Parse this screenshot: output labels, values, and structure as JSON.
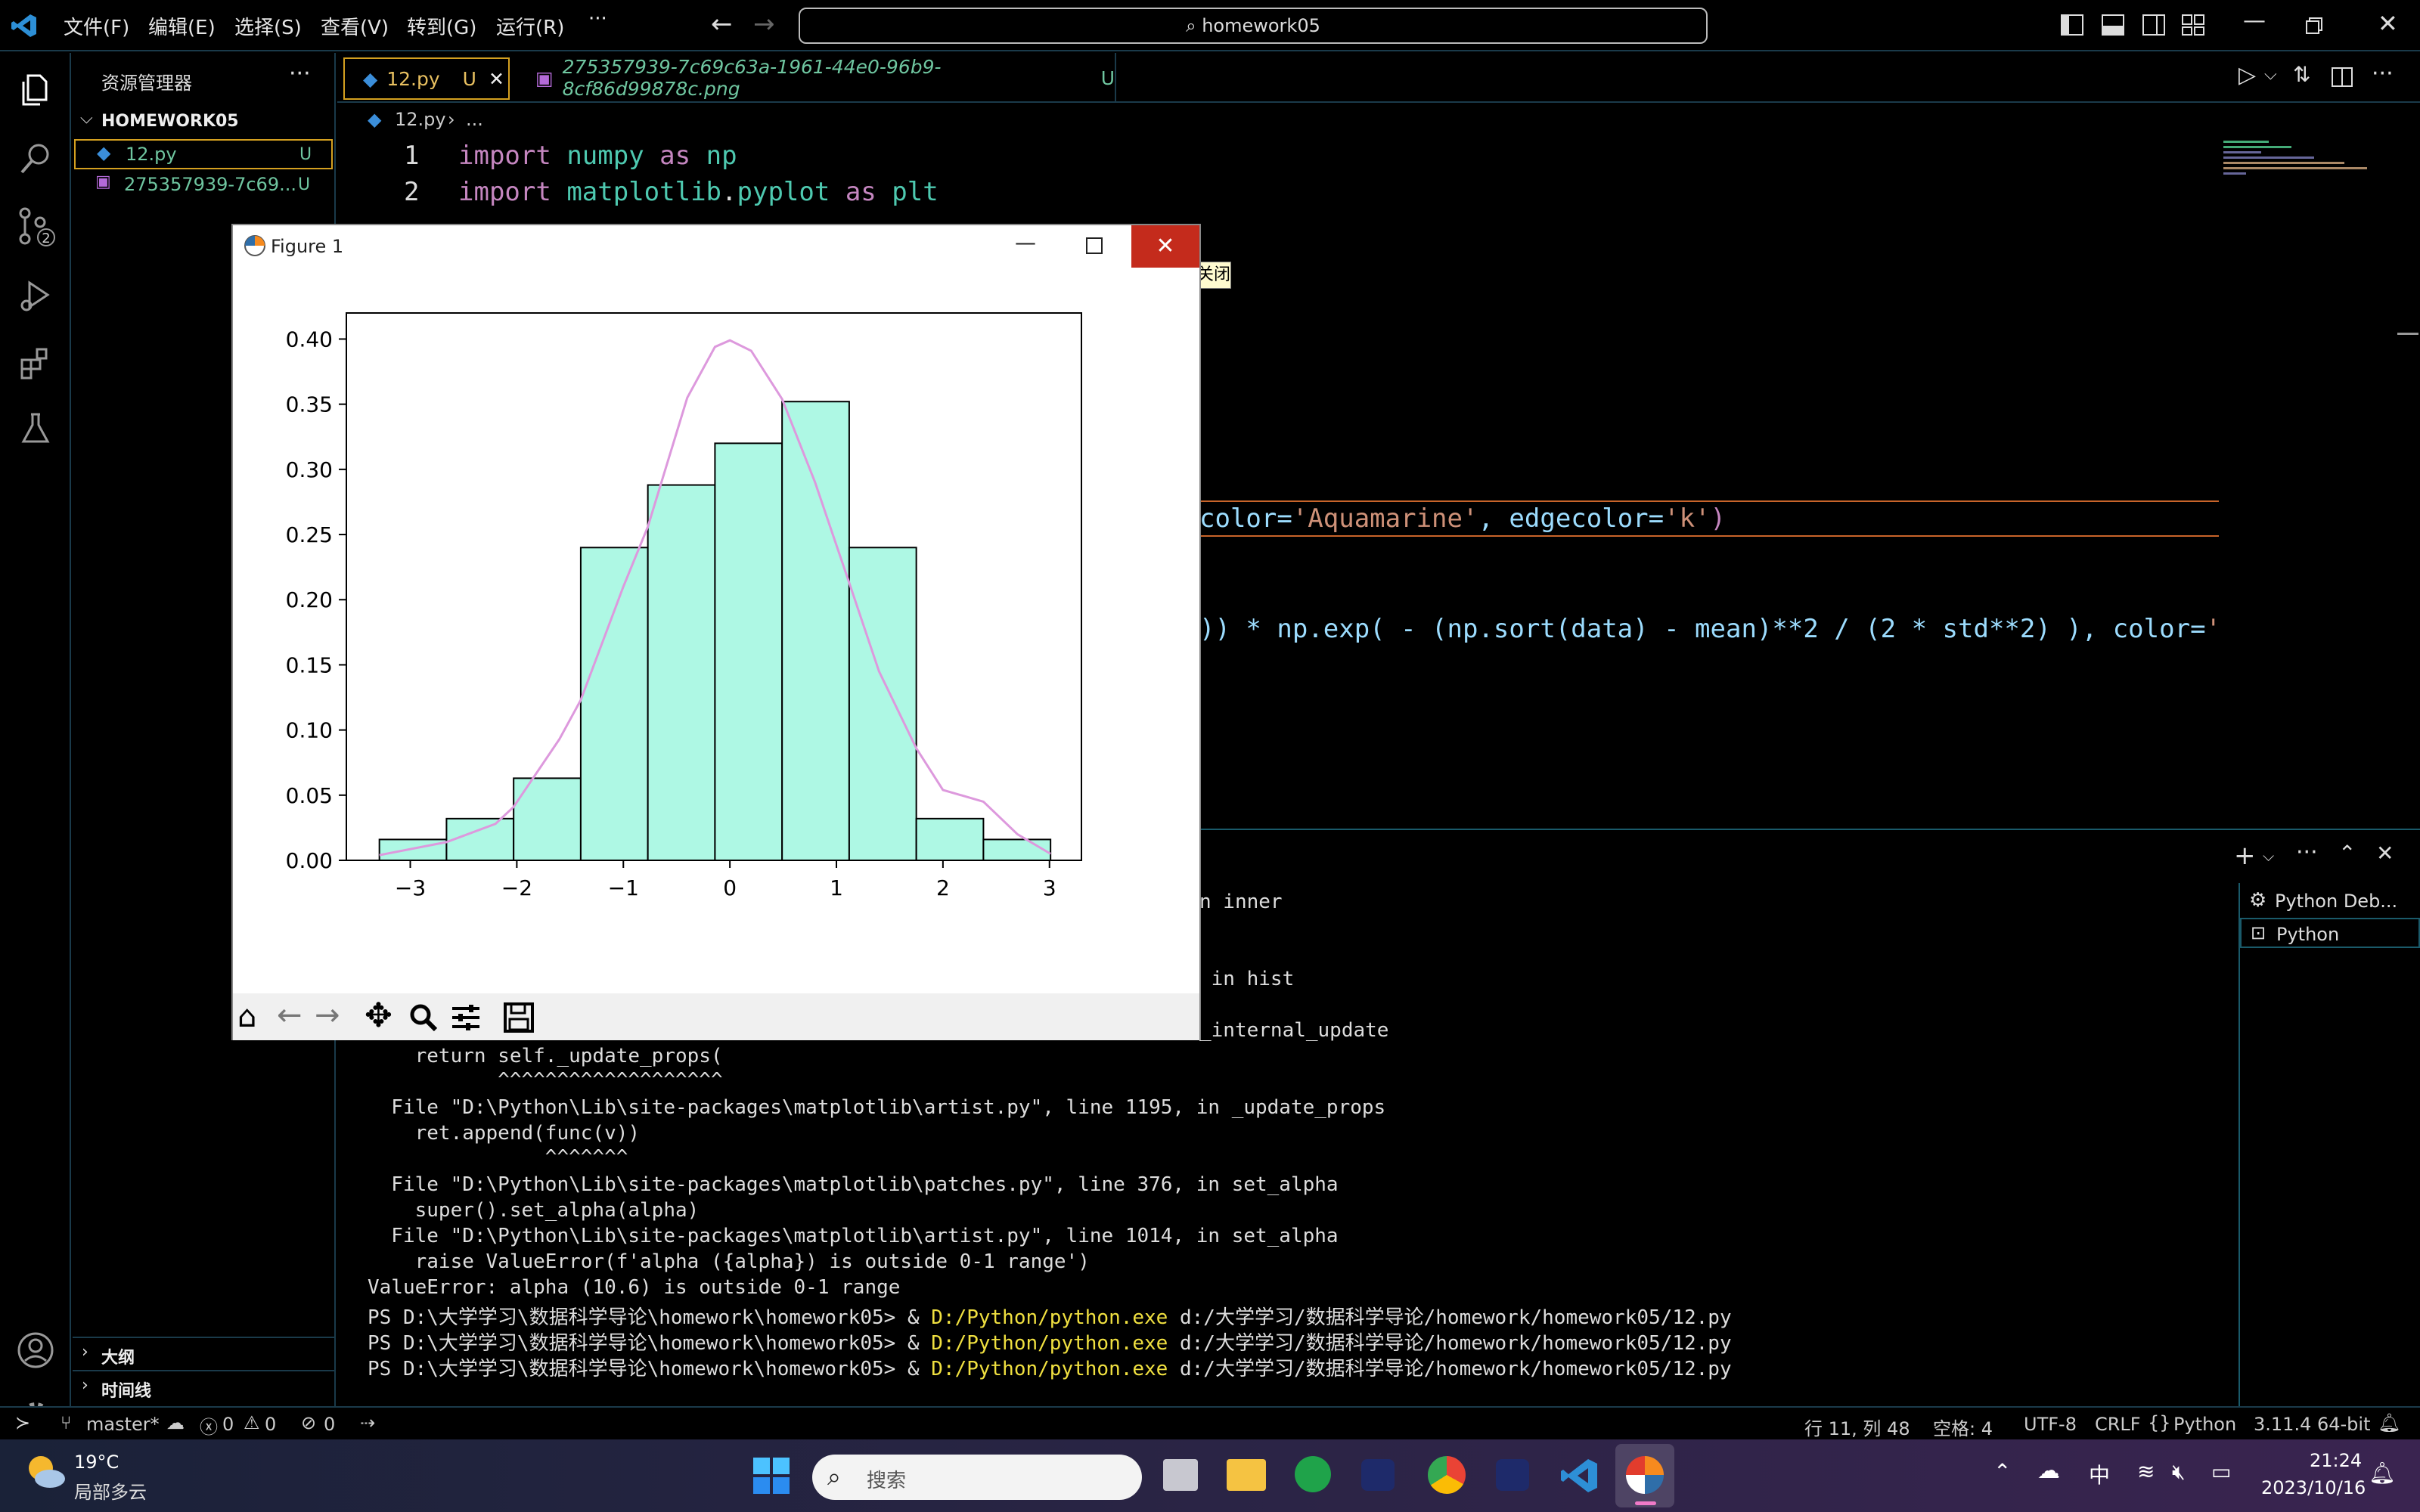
{
  "titlebar": {
    "menus": [
      "文件(F)",
      "编辑(E)",
      "选择(S)",
      "查看(V)",
      "转到(G)",
      "运行(R)",
      "···"
    ],
    "search": "homework05"
  },
  "sidebar": {
    "title": "资源管理器",
    "folder": "HOMEWORK05",
    "files": [
      {
        "name": "12.py",
        "status": "U"
      },
      {
        "name": "275357939-7c69...",
        "status": "U"
      }
    ],
    "outline": "大纲",
    "timeline": "时间线"
  },
  "tabs": [
    {
      "label": "12.py",
      "status": "U"
    },
    {
      "label": "275357939-7c69c63a-1961-44e0-96b9-8cf86d99878c.png",
      "status": "U"
    }
  ],
  "breadcrumb": {
    "file": "12.py",
    "rest": "..."
  },
  "editor": {
    "line_numbers": [
      "1",
      "2"
    ],
    "line1": {
      "kw": "import",
      "mod": "numpy",
      "as": "as",
      "alias": "np"
    },
    "line2": {
      "kw": "import",
      "mod": "matplotlib",
      "dot": ".",
      "sub": "pyplot",
      "as": "as",
      "alias": "plt"
    },
    "line_hist": {
      "a": "color=",
      "b": "'Aquamarine'",
      "c": ", edgecolor=",
      "d": "'k'",
      "e": ")"
    },
    "line_plot": {
      "a": ")) * np.exp( - (np.sort(data) - mean)**2 / (2 * std**2) ), color=",
      "b": "'Pl"
    },
    "tooltip": "关闭"
  },
  "terminal": {
    "side_items": [
      "Python Deb...",
      "Python"
    ],
    "lines": [
      {
        "text": "n inner"
      },
      {
        "text": " in hist"
      },
      {
        "text": "_internal_update"
      },
      {
        "text": "    return self._update_props("
      },
      {
        "text": "           ^^^^^^^^^^^^^^^^^^^"
      },
      {
        "text": "  File \"D:\\Python\\Lib\\site-packages\\matplotlib\\artist.py\", line 1195, in _update_props"
      },
      {
        "text": "    ret.append(func(v))"
      },
      {
        "text": "               ^^^^^^^"
      },
      {
        "text": "  File \"D:\\Python\\Lib\\site-packages\\matplotlib\\patches.py\", line 376, in set_alpha"
      },
      {
        "text": "    super().set_alpha(alpha)"
      },
      {
        "text": "  File \"D:\\Python\\Lib\\site-packages\\matplotlib\\artist.py\", line 1014, in set_alpha"
      },
      {
        "text": "    raise ValueError(f'alpha ({alpha}) is outside 0-1 range')"
      },
      {
        "text": "ValueError: alpha (10.6) is outside 0-1 range"
      }
    ],
    "prompt": "PS D:\\大学学习\\数据科学导论\\homework\\homework05> & ",
    "exe": "D:/Python/python.exe",
    "arg": " d:/大学学习/数据科学导论/homework/homework05/12.py"
  },
  "figure": {
    "title": "Figure 1"
  },
  "chart_data": {
    "type": "bar",
    "title": "",
    "bin_edges": [
      -3.29,
      -2.66,
      -2.03,
      -1.4,
      -0.77,
      -0.14,
      0.49,
      1.12,
      1.75,
      2.38,
      3.01
    ],
    "values": [
      0.016,
      0.032,
      0.063,
      0.24,
      0.288,
      0.32,
      0.352,
      0.24,
      0.032,
      0.016
    ],
    "bar_color": "#aef8e4",
    "edge_color": "#000000",
    "curve": {
      "color": "#dd99dd",
      "x": [
        -3.29,
        -2.66,
        -2.2,
        -2.03,
        -1.6,
        -1.4,
        -1.0,
        -0.77,
        -0.4,
        -0.14,
        0,
        0.2,
        0.49,
        0.8,
        1.12,
        1.4,
        1.75,
        2.0,
        2.38,
        2.7,
        3.01
      ],
      "y": [
        0.004,
        0.014,
        0.028,
        0.041,
        0.093,
        0.123,
        0.21,
        0.256,
        0.355,
        0.394,
        0.399,
        0.391,
        0.354,
        0.29,
        0.213,
        0.145,
        0.086,
        0.054,
        0.045,
        0.02,
        0.005
      ]
    },
    "xlim": [
      -3.6,
      3.3
    ],
    "ylim": [
      0,
      0.42
    ],
    "xticks": [
      "−3",
      "−2",
      "−1",
      "0",
      "1",
      "2",
      "3"
    ],
    "xtick_values": [
      -3,
      -2,
      -1,
      0,
      1,
      2,
      3
    ],
    "yticks": [
      "0.00",
      "0.05",
      "0.10",
      "0.15",
      "0.20",
      "0.25",
      "0.30",
      "0.35",
      "0.40"
    ],
    "ytick_values": [
      0,
      0.05,
      0.1,
      0.15,
      0.2,
      0.25,
      0.3,
      0.35,
      0.4
    ]
  },
  "statusbar": {
    "branch": "master*",
    "errors": "0",
    "warnings": "0",
    "ports": "0",
    "position": "行 11, 列 48",
    "spaces": "空格: 4",
    "encoding": "UTF-8",
    "eol": "CRLF",
    "language": "Python",
    "version": "3.11.4 64-bit"
  },
  "taskbar": {
    "temp": "19°C",
    "weather": "局部多云",
    "search": "搜索",
    "ime": "中",
    "time": "21:24",
    "date": "2023/10/16"
  }
}
